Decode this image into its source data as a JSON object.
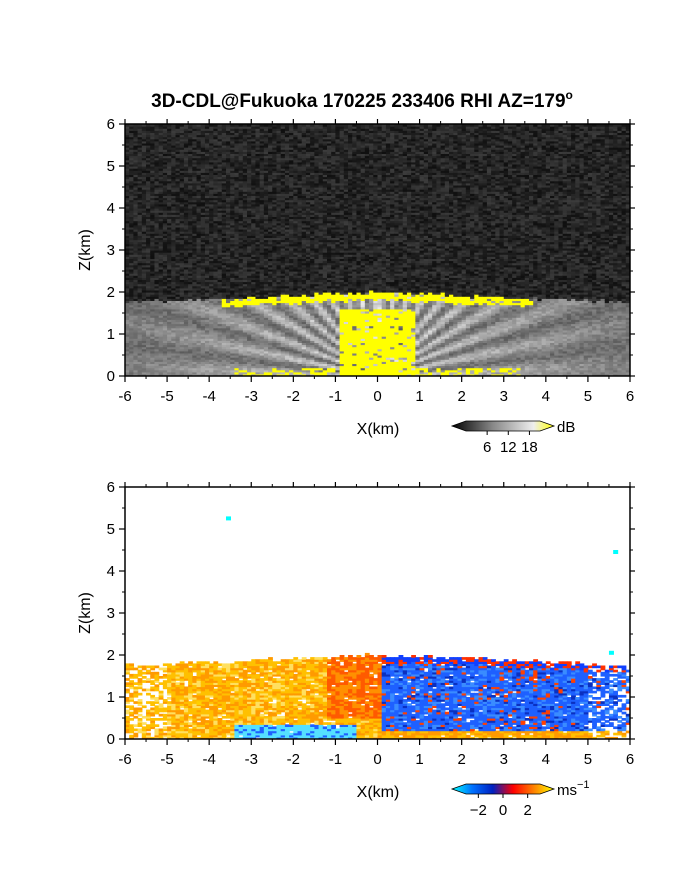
{
  "chart_data": [
    {
      "type": "heatmap",
      "title": "3D-CDL@Fukuoka 170225 233406 RHI AZ=179",
      "title_superscript": "o",
      "xlabel": "X(km)",
      "ylabel": "Z(km)",
      "xlim": [
        -6,
        6
      ],
      "ylim": [
        0,
        6
      ],
      "x_ticks": [
        "-6",
        "-5",
        "-4",
        "-3",
        "-2",
        "-1",
        "0",
        "1",
        "2",
        "3",
        "4",
        "5",
        "6"
      ],
      "y_ticks": [
        "0",
        "1",
        "2",
        "3",
        "4",
        "5",
        "6"
      ],
      "colorbar": {
        "unit": "dB",
        "ticks": [
          6,
          12,
          18
        ],
        "tick_labels": [
          "6",
          "12",
          "18"
        ],
        "range": [
          0,
          21
        ],
        "colors": [
          "#000000",
          "#444444",
          "#888888",
          "#bbbbbb",
          "#eeeeee",
          "#ffff00"
        ]
      },
      "echo_top_km": 2.0,
      "colors": {
        "background": "#1a1a1a",
        "strong": "#ffff00"
      }
    },
    {
      "type": "heatmap",
      "xlabel": "X(km)",
      "ylabel": "Z(km)",
      "xlim": [
        -6,
        6
      ],
      "ylim": [
        0,
        6
      ],
      "x_ticks": [
        "-6",
        "-5",
        "-4",
        "-3",
        "-2",
        "-1",
        "0",
        "1",
        "2",
        "3",
        "4",
        "5",
        "6"
      ],
      "y_ticks": [
        "0",
        "1",
        "2",
        "3",
        "4",
        "5",
        "6"
      ],
      "colorbar": {
        "unit": "ms",
        "unit_superscript": "−1",
        "ticks": [
          -2,
          0,
          2
        ],
        "tick_labels": [
          "−2",
          "0",
          "2"
        ],
        "range": [
          -3,
          3
        ],
        "colors": [
          "#00ffff",
          "#0070ff",
          "#0020c0",
          "#ff0000",
          "#ff8000",
          "#ffff00"
        ]
      },
      "echo_top_km": 2.0,
      "colors": {
        "background": "#ffffff",
        "approaching": "#1e60ff",
        "receding": "#ff8a00"
      }
    }
  ]
}
